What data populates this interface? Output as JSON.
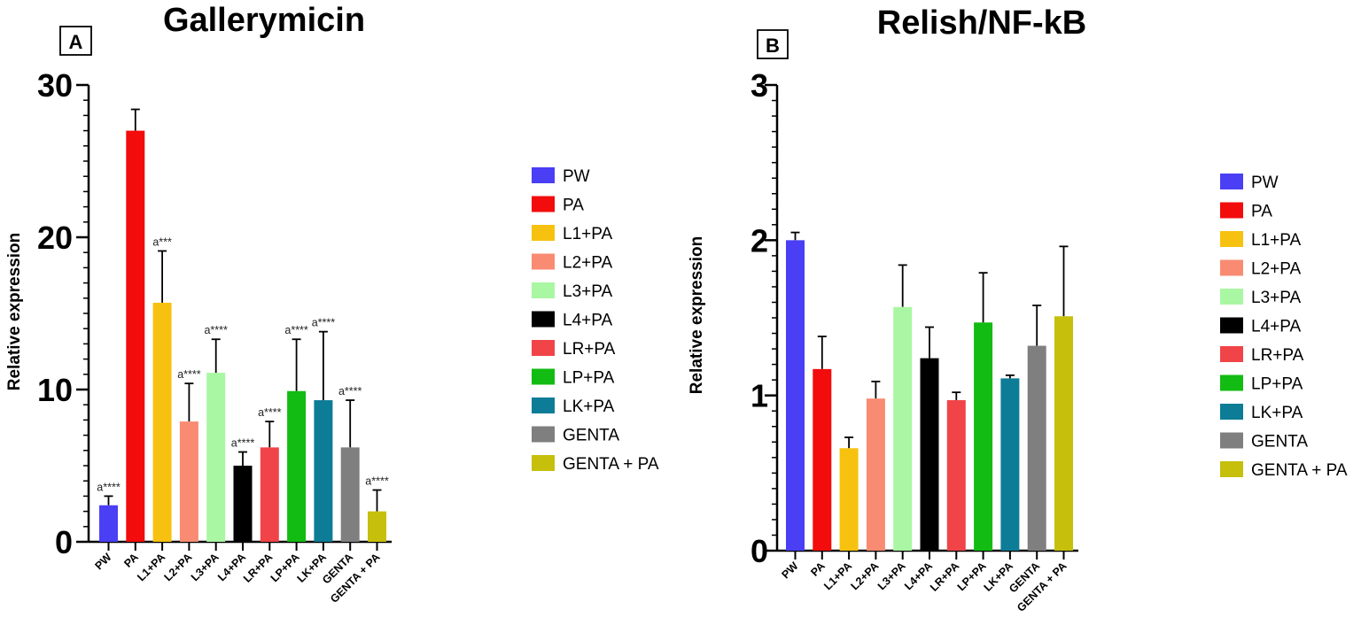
{
  "chart_data": [
    {
      "type": "bar",
      "panel": "A",
      "title": "Gallerymicin",
      "xlabel": "",
      "ylabel": "Relative expression",
      "ylim": [
        0,
        30
      ],
      "yticks": [
        "0",
        "10",
        "20",
        "30"
      ],
      "categories": [
        "PW",
        "PA",
        "L1+PA",
        "L2+PA",
        "L3+PA",
        "L4+PA",
        "LR+PA",
        "LP+PA",
        "LK+PA",
        "GENTA",
        "GENTA + PA"
      ],
      "values": [
        2.4,
        27.0,
        15.7,
        7.9,
        11.1,
        5.0,
        6.2,
        9.9,
        9.3,
        6.2,
        2.0
      ],
      "errors": [
        0.6,
        1.4,
        3.4,
        2.5,
        2.2,
        0.9,
        1.7,
        3.4,
        4.5,
        3.1,
        1.4
      ],
      "annotations": [
        "a****",
        "",
        "a***",
        "a****",
        "a****",
        "a****",
        "a****",
        "a****",
        "a****",
        "a****",
        "a****"
      ],
      "legend": [
        "PW",
        "PA",
        "L1+PA",
        "L2+PA",
        "L3+PA",
        "L4+PA",
        "LR+PA",
        "LP+PA",
        "LK+PA",
        "GENTA",
        "GENTA + PA"
      ],
      "legend_position": "right"
    },
    {
      "type": "bar",
      "panel": "B",
      "title": "Relish/NF-kB",
      "xlabel": "",
      "ylabel": "Relative expression",
      "ylim": [
        0,
        3
      ],
      "yticks": [
        "0",
        "1",
        "2",
        "3"
      ],
      "categories": [
        "PW",
        "PA",
        "L1+PA",
        "L2+PA",
        "L3+PA",
        "L4+PA",
        "LR+PA",
        "LP+PA",
        "LK+PA",
        "GENTA",
        "GENTA + PA"
      ],
      "values": [
        2.0,
        1.17,
        0.66,
        0.98,
        1.57,
        1.24,
        0.97,
        1.47,
        1.11,
        1.32,
        1.51
      ],
      "errors": [
        0.05,
        0.21,
        0.07,
        0.11,
        0.27,
        0.2,
        0.05,
        0.32,
        0.02,
        0.26,
        0.45
      ],
      "annotations": [
        "",
        "",
        "",
        "",
        "",
        "",
        "",
        "",
        "",
        "",
        ""
      ],
      "legend": [
        "PW",
        "PA",
        "L1+PA",
        "L2+PA",
        "L3+PA",
        "L4+PA",
        "LR+PA",
        "LP+PA",
        "LK+PA",
        "GENTA",
        "GENTA + PA"
      ],
      "legend_position": "right"
    }
  ],
  "colors": [
    "#4a3ff5",
    "#f20c0c",
    "#f7c20f",
    "#f98b72",
    "#a9f7a2",
    "#000000",
    "#f04448",
    "#12bc12",
    "#0d7c96",
    "#7f7f7f",
    "#c6bf0c"
  ]
}
